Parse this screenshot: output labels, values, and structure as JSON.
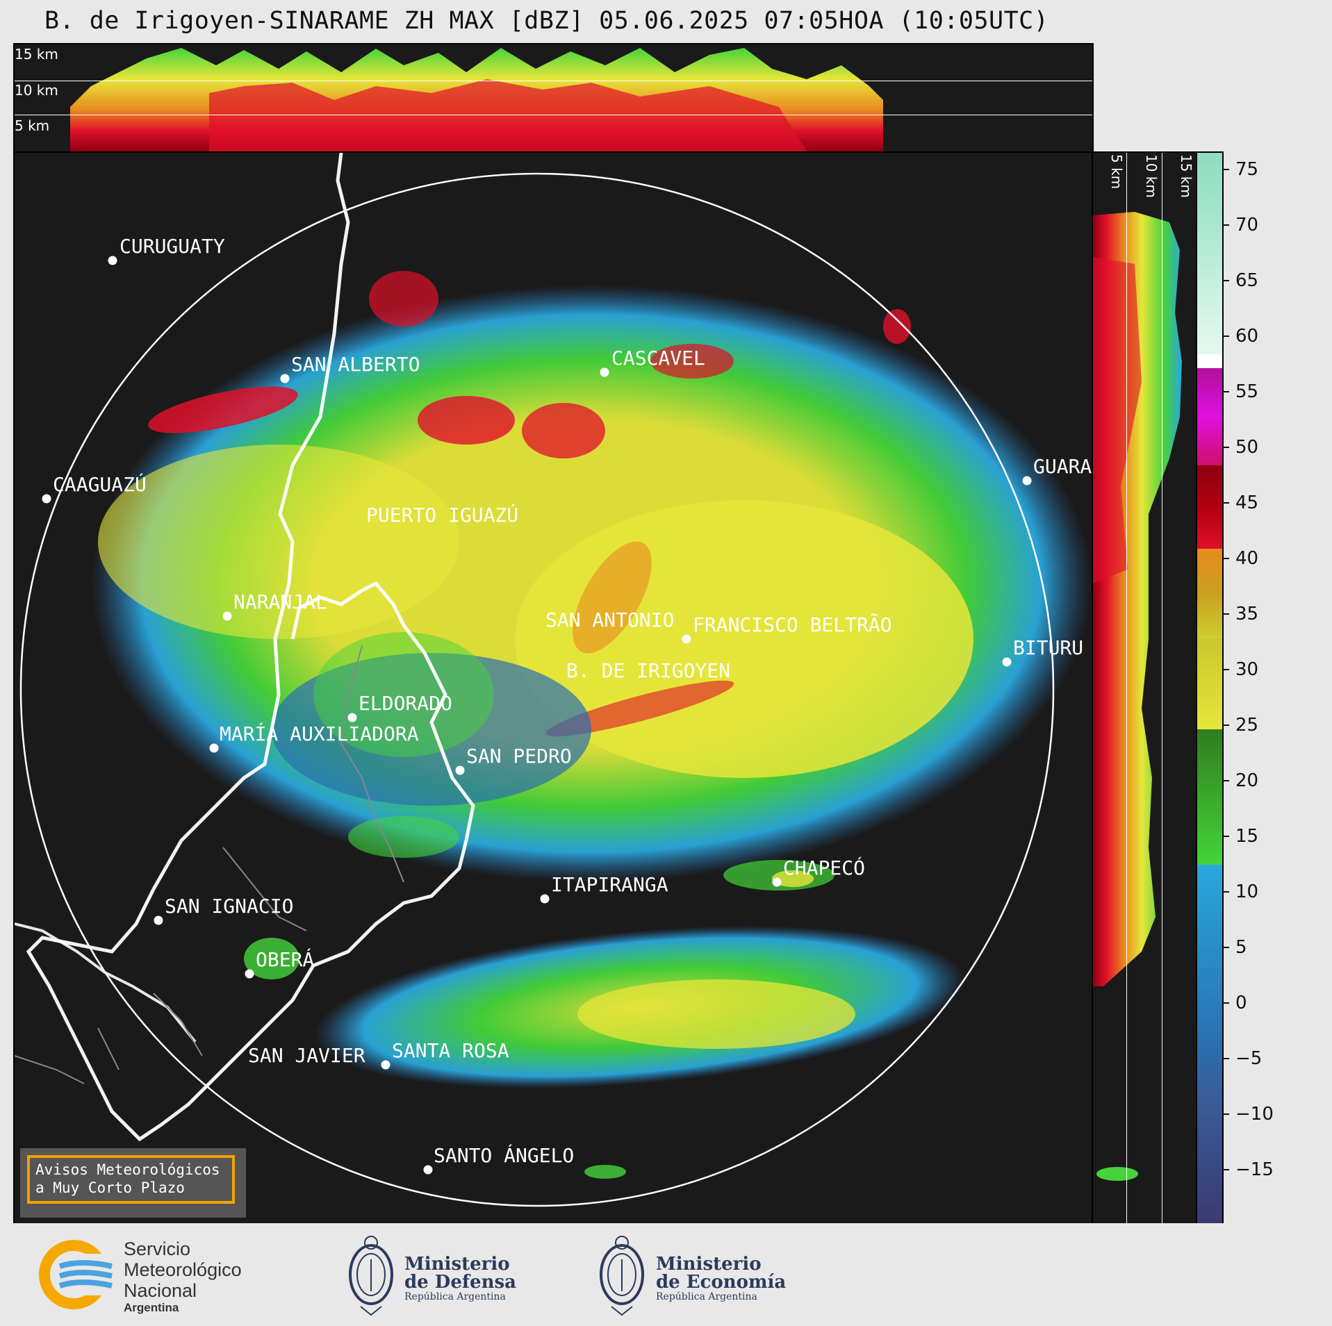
{
  "title": "B. de Irigoyen-SINARAME ZH MAX [dBZ] 05.06.2025 07:05HOA (10:05UTC)",
  "top_panel": {
    "height_labels": [
      "15 km",
      "10 km",
      "5 km"
    ]
  },
  "side_panel": {
    "height_labels": [
      "5 km",
      "10 km",
      "15 km"
    ]
  },
  "colorbar": {
    "unit": "dBZ",
    "ticks": [
      "75",
      "70",
      "65",
      "60",
      "55",
      "50",
      "45",
      "40",
      "35",
      "30",
      "25",
      "20",
      "15",
      "10",
      "5",
      "0",
      "−5",
      "−10",
      "−15"
    ],
    "colors": {
      "above60": "#8fdcbf",
      "white60": "#ffffff",
      "purple": "#b0109b",
      "magenta": "#e010e0",
      "darkred": "#8e0010",
      "red": "#e0102a",
      "orange": "#e88a1f",
      "yellow": "#e6e63a",
      "darkgreen": "#2e7d1e",
      "green": "#44d43a",
      "lightblue": "#2aa7dd",
      "blue": "#2a6fb0",
      "darkblue": "#3a4a85"
    }
  },
  "cities": [
    {
      "name": "CURUGUATY"
    },
    {
      "name": "SAN ALBERTO"
    },
    {
      "name": "CASCAVEL"
    },
    {
      "name": "CAAGUAZÚ"
    },
    {
      "name": "GUARA"
    },
    {
      "name": "PUERTO IGUAZÚ"
    },
    {
      "name": "NARANJAL"
    },
    {
      "name": "SAN ANTONIO"
    },
    {
      "name": "FRANCISCO BELTRÃO"
    },
    {
      "name": "BITURU"
    },
    {
      "name": "B. DE IRIGOYEN"
    },
    {
      "name": "ELDORADO"
    },
    {
      "name": "MARÍA AUXILIADORA"
    },
    {
      "name": "SAN PEDRO"
    },
    {
      "name": "CHAPECÓ"
    },
    {
      "name": "ITAPIRANGA"
    },
    {
      "name": "SAN IGNACIO"
    },
    {
      "name": "OBERÁ"
    },
    {
      "name": "SAN JAVIER"
    },
    {
      "name": "SANTA ROSA"
    },
    {
      "name": "SANTO ÁNGELO"
    }
  ],
  "warning_box": {
    "line1": "Avisos Meteorológicos",
    "line2": "a Muy Corto Plazo"
  },
  "footer": {
    "smn": {
      "line1": "Servicio",
      "line2": "Meteorológico",
      "line3": "Nacional",
      "line4": "Argentina"
    },
    "defensa": {
      "line1": "Ministerio",
      "line2": "de Defensa",
      "sub": "República Argentina"
    },
    "economia": {
      "line1": "Ministerio",
      "line2": "de Economía",
      "sub": "República Argentina"
    }
  }
}
